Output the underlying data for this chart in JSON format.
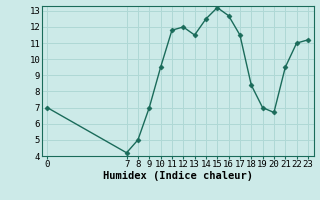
{
  "x": [
    0,
    7,
    8,
    9,
    10,
    11,
    12,
    13,
    14,
    15,
    16,
    17,
    18,
    19,
    20,
    21,
    22,
    23
  ],
  "y": [
    7.0,
    4.2,
    5.0,
    7.0,
    9.5,
    11.8,
    12.0,
    11.5,
    12.5,
    13.2,
    12.7,
    11.5,
    8.4,
    7.0,
    6.7,
    9.5,
    11.0,
    11.2
  ],
  "line_color": "#1a6b5a",
  "bg_color": "#cceae8",
  "grid_color": "#afd8d5",
  "xlabel": "Humidex (Indice chaleur)",
  "xlim": [
    -0.5,
    23.5
  ],
  "ylim": [
    4,
    13.3
  ],
  "yticks": [
    4,
    5,
    6,
    7,
    8,
    9,
    10,
    11,
    12,
    13
  ],
  "xticks": [
    0,
    7,
    8,
    9,
    10,
    11,
    12,
    13,
    14,
    15,
    16,
    17,
    18,
    19,
    20,
    21,
    22,
    23
  ],
  "markersize": 2.5,
  "linewidth": 1.0,
  "xlabel_fontsize": 7.5,
  "tick_fontsize": 6.5
}
